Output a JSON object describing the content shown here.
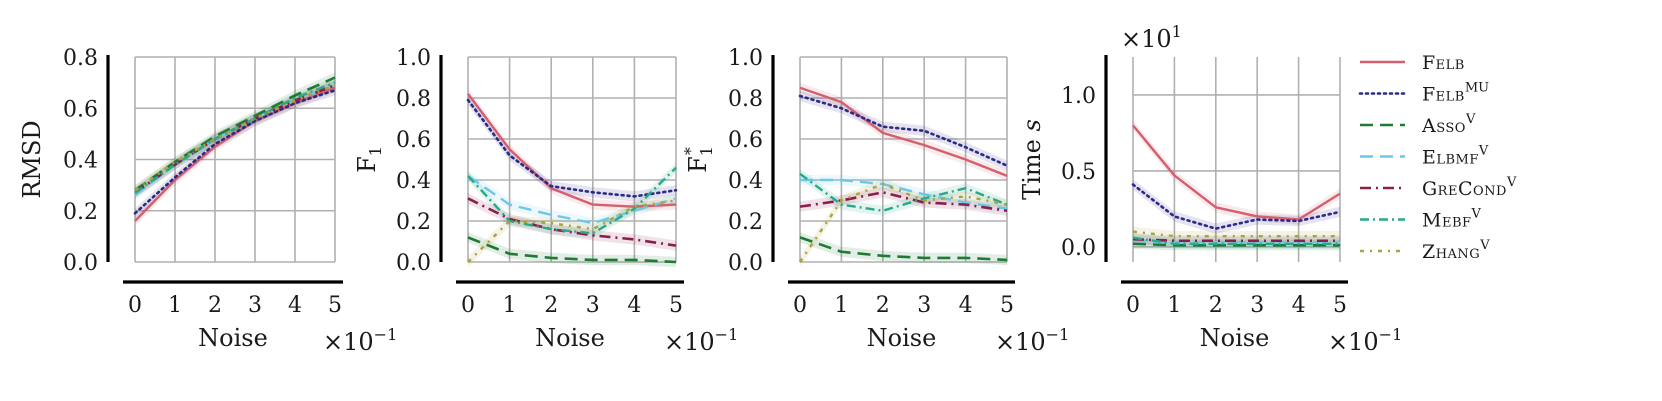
{
  "chart_data": [
    {
      "type": "line",
      "ylabel": "RMSD",
      "xlabel": "Noise",
      "x": [
        0,
        1,
        2,
        3,
        4,
        5
      ],
      "x_multiplier": "×10",
      "x_multiplier_exp": "−1",
      "xticks": [
        "0",
        "1",
        "2",
        "3",
        "4",
        "5"
      ],
      "ylim": [
        0,
        0.8
      ],
      "yticks": [
        "0.0",
        "0.2",
        "0.4",
        "0.6",
        "0.8"
      ],
      "grid": true,
      "series": [
        {
          "key": "felb",
          "values": [
            0.16,
            0.32,
            0.45,
            0.55,
            0.62,
            0.68
          ]
        },
        {
          "key": "felbmu",
          "values": [
            0.19,
            0.33,
            0.46,
            0.55,
            0.62,
            0.67
          ]
        },
        {
          "key": "asso",
          "values": [
            0.28,
            0.39,
            0.49,
            0.57,
            0.65,
            0.72
          ]
        },
        {
          "key": "elbmf",
          "values": [
            0.26,
            0.38,
            0.48,
            0.56,
            0.63,
            0.69
          ]
        },
        {
          "key": "grecond",
          "values": [
            0.27,
            0.38,
            0.48,
            0.56,
            0.63,
            0.69
          ]
        },
        {
          "key": "mebf",
          "values": [
            0.27,
            0.38,
            0.48,
            0.56,
            0.64,
            0.7
          ]
        },
        {
          "key": "zhang",
          "values": [
            0.28,
            0.39,
            0.48,
            0.56,
            0.63,
            0.69
          ]
        }
      ]
    },
    {
      "type": "line",
      "ylabel": "F",
      "ylabel_sub": "1",
      "xlabel": "Noise",
      "x": [
        0,
        1,
        2,
        3,
        4,
        5
      ],
      "x_multiplier": "×10",
      "x_multiplier_exp": "−1",
      "xticks": [
        "0",
        "1",
        "2",
        "3",
        "4",
        "5"
      ],
      "ylim": [
        0,
        1.0
      ],
      "yticks": [
        "0.0",
        "0.2",
        "0.4",
        "0.6",
        "0.8",
        "1.0"
      ],
      "grid": true,
      "series": [
        {
          "key": "felb",
          "values": [
            0.82,
            0.55,
            0.36,
            0.28,
            0.27,
            0.28
          ]
        },
        {
          "key": "felbmu",
          "values": [
            0.79,
            0.52,
            0.37,
            0.34,
            0.32,
            0.35
          ]
        },
        {
          "key": "asso",
          "values": [
            0.12,
            0.04,
            0.02,
            0.01,
            0.01,
            0.0
          ]
        },
        {
          "key": "elbmf",
          "values": [
            0.42,
            0.28,
            0.23,
            0.19,
            0.25,
            0.31
          ]
        },
        {
          "key": "grecond",
          "values": [
            0.31,
            0.21,
            0.16,
            0.13,
            0.11,
            0.08
          ]
        },
        {
          "key": "mebf",
          "values": [
            0.42,
            0.2,
            0.16,
            0.14,
            0.26,
            0.46
          ]
        },
        {
          "key": "zhang",
          "values": [
            0.0,
            0.2,
            0.19,
            0.16,
            0.27,
            0.3
          ]
        }
      ]
    },
    {
      "type": "line",
      "ylabel": "F",
      "ylabel_sub": "1",
      "ylabel_sup": "*",
      "xlabel": "Noise",
      "x": [
        0,
        1,
        2,
        3,
        4,
        5
      ],
      "x_multiplier": "×10",
      "x_multiplier_exp": "−1",
      "xticks": [
        "0",
        "1",
        "2",
        "3",
        "4",
        "5"
      ],
      "ylim": [
        0,
        1.0
      ],
      "yticks": [
        "0.0",
        "0.2",
        "0.4",
        "0.6",
        "0.8",
        "1.0"
      ],
      "grid": true,
      "series": [
        {
          "key": "felb",
          "values": [
            0.85,
            0.78,
            0.63,
            0.57,
            0.5,
            0.42
          ]
        },
        {
          "key": "felbmu",
          "values": [
            0.81,
            0.75,
            0.66,
            0.64,
            0.56,
            0.47
          ]
        },
        {
          "key": "asso",
          "values": [
            0.12,
            0.05,
            0.03,
            0.02,
            0.02,
            0.01
          ]
        },
        {
          "key": "elbmf",
          "values": [
            0.4,
            0.4,
            0.38,
            0.33,
            0.29,
            0.26
          ]
        },
        {
          "key": "grecond",
          "values": [
            0.27,
            0.3,
            0.34,
            0.29,
            0.28,
            0.25
          ]
        },
        {
          "key": "mebf",
          "values": [
            0.43,
            0.28,
            0.25,
            0.31,
            0.36,
            0.28
          ]
        },
        {
          "key": "zhang",
          "values": [
            0.0,
            0.3,
            0.38,
            0.3,
            0.32,
            0.28
          ]
        }
      ]
    },
    {
      "type": "line",
      "ylabel": "Time ",
      "ylabel_italic": "s",
      "y_multiplier": "×10",
      "y_multiplier_exp": "1",
      "xlabel": "Noise",
      "x": [
        0,
        1,
        2,
        3,
        4,
        5
      ],
      "x_multiplier": "×10",
      "x_multiplier_exp": "−1",
      "xticks": [
        "0",
        "1",
        "2",
        "3",
        "4",
        "5"
      ],
      "ylim": [
        -0.1,
        1.25
      ],
      "yticks": [
        0.0,
        0.5,
        1.0
      ],
      "ytick_labels": [
        "0.0",
        "0.5",
        "1.0"
      ],
      "grid": true,
      "series": [
        {
          "key": "felb",
          "values": [
            0.8,
            0.47,
            0.26,
            0.2,
            0.18,
            0.35
          ]
        },
        {
          "key": "felbmu",
          "values": [
            0.41,
            0.2,
            0.12,
            0.18,
            0.17,
            0.23
          ]
        },
        {
          "key": "asso",
          "values": [
            0.02,
            0.01,
            0.01,
            0.01,
            0.01,
            0.01
          ]
        },
        {
          "key": "elbmf",
          "values": [
            0.04,
            0.03,
            0.03,
            0.03,
            0.03,
            0.03
          ]
        },
        {
          "key": "grecond",
          "values": [
            0.05,
            0.04,
            0.04,
            0.04,
            0.04,
            0.04
          ]
        },
        {
          "key": "mebf",
          "values": [
            0.06,
            0.02,
            0.02,
            0.02,
            0.02,
            0.02
          ]
        },
        {
          "key": "zhang",
          "values": [
            0.1,
            0.07,
            0.07,
            0.07,
            0.07,
            0.07
          ]
        }
      ]
    }
  ],
  "legend": {
    "placement": "right",
    "entries": [
      {
        "key": "felb",
        "label": "Felb",
        "sup": "",
        "color": "#d35f6f",
        "dash": ""
      },
      {
        "key": "felbmu",
        "label": "Felb",
        "sup": "MU",
        "color": "#2b2a87",
        "dash": "2 4"
      },
      {
        "key": "asso",
        "label": "Asso",
        "sup": "V",
        "color": "#1f7a34",
        "dash": "13 7"
      },
      {
        "key": "elbmf",
        "label": "Elbmf",
        "sup": "V",
        "color": "#6ec7e8",
        "dash": "13 7"
      },
      {
        "key": "grecond",
        "label": "GreCond",
        "sup": "V",
        "color": "#8b1f4c",
        "dash": "11 5 2 5"
      },
      {
        "key": "mebf",
        "label": "Mebf",
        "sup": "V",
        "color": "#2aa88a",
        "dash": "9 4 2 4"
      },
      {
        "key": "zhang",
        "label": "Zhang",
        "sup": "V",
        "color": "#a9a33a",
        "dash": "4 6 2 6"
      }
    ]
  }
}
